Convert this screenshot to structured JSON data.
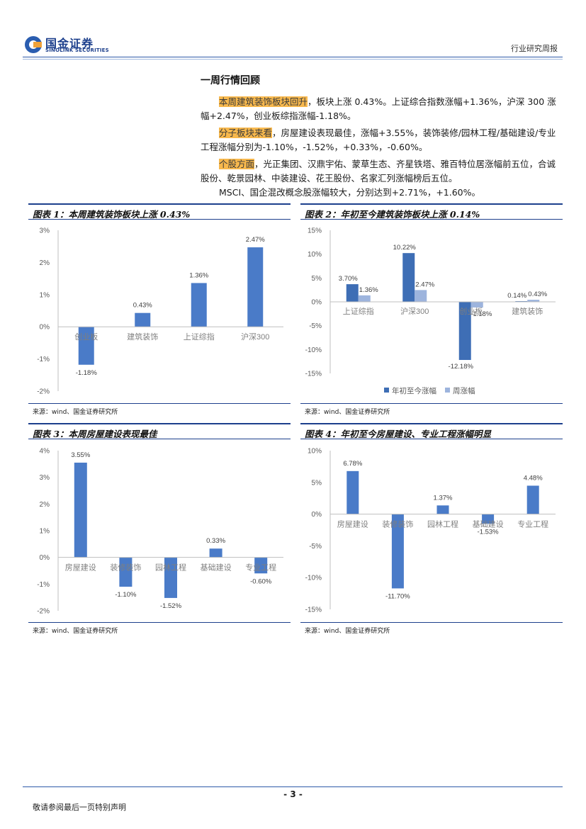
{
  "header": {
    "logo_cn": "国金证券",
    "logo_en": "SINOLINK SECURITIES",
    "report_type": "行业研究周报"
  },
  "section_title": "一周行情回顾",
  "paragraphs": [
    {
      "highlight": "本周建筑装饰板块回升",
      "text": "，板块上涨 0.43%。上证综合指数涨幅+1.36%，沪深 300 涨幅+2.47%，创业板综指涨幅-1.18%。"
    },
    {
      "highlight": "分子板块来看",
      "text": "，房屋建设表现最佳，涨幅+3.55%，装饰装修/园林工程/基础建设/专业工程涨幅分别为-1.10%，-1.52%，+0.33%，-0.60%。"
    },
    {
      "highlight": "个股方面",
      "text": "，光正集团、汉鼎宇佑、蒙草生态、齐星铁塔、雅百特位居涨幅前五位，合诚股份、乾景园林、中装建设、花王股份、名家汇列涨幅榜后五位。"
    },
    {
      "highlight": "",
      "text": "MSCI、国企混改概念股涨幅较大，分别达到+2.71%，+1.60%。"
    }
  ],
  "chart_data": [
    {
      "type": "bar",
      "title": "图表 1：本周建筑装饰板块上涨 0.43%",
      "categories": [
        "创业板",
        "建筑装饰",
        "上证综指",
        "沪深300"
      ],
      "values": [
        -1.18,
        0.43,
        1.36,
        2.47
      ],
      "data_labels": [
        "-1.18%",
        "0.43%",
        "1.36%",
        "2.47%"
      ],
      "ylim": [
        -2,
        3
      ],
      "yticks": [
        "3%",
        "2%",
        "1%",
        "0%",
        "-1%",
        "-2%"
      ],
      "grid": false,
      "color": "#4a7bc8",
      "source": "来源：wind、国金证券研究所"
    },
    {
      "type": "bar",
      "title": "图表 2：年初至今建筑装饰板块上涨 0.14%",
      "categories": [
        "上证综指",
        "沪深300",
        "创业板",
        "建筑装饰"
      ],
      "series": [
        {
          "name": "年初至今涨幅",
          "values": [
            3.7,
            10.22,
            -12.18,
            0.14
          ],
          "labels": [
            "3.70%",
            "10.22%",
            "-12.18%",
            "0.14%"
          ],
          "color": "#3e6eb5"
        },
        {
          "name": "周涨幅",
          "values": [
            1.36,
            2.47,
            -1.18,
            0.43
          ],
          "labels": [
            "1.36%",
            "2.47%",
            "-1.18%",
            "0.43%"
          ],
          "color": "#9db4dd"
        }
      ],
      "ylim": [
        -15,
        15
      ],
      "yticks": [
        "15%",
        "10%",
        "5%",
        "0%",
        "-5%",
        "-10%",
        "-15%"
      ],
      "legend": "bottom",
      "grid": false,
      "source": "来源：wind、国金证券研究所"
    },
    {
      "type": "bar",
      "title": "图表 3：本周房屋建设表现最佳",
      "categories": [
        "房屋建设",
        "装修装饰",
        "园林工程",
        "基础建设",
        "专业工程"
      ],
      "values": [
        3.55,
        -1.1,
        -1.52,
        0.33,
        -0.6
      ],
      "data_labels": [
        "3.55%",
        "-1.10%",
        "-1.52%",
        "0.33%",
        "-0.60%"
      ],
      "ylim": [
        -2,
        4
      ],
      "yticks": [
        "4%",
        "3%",
        "2%",
        "1%",
        "0%",
        "-1%",
        "-2%"
      ],
      "grid": false,
      "color": "#4a7bc8",
      "source": "来源：wind、国金证券研究所"
    },
    {
      "type": "bar",
      "title": "图表 4：年初至今房屋建设、专业工程涨幅明显",
      "categories": [
        "房屋建设",
        "装修装饰",
        "园林工程",
        "基础建设",
        "专业工程"
      ],
      "values": [
        6.78,
        -11.7,
        1.37,
        -1.53,
        4.48
      ],
      "data_labels": [
        "6.78%",
        "-11.70%",
        "1.37%",
        "-1.53%",
        "4.48%"
      ],
      "ylim": [
        -15,
        10
      ],
      "yticks": [
        "10%",
        "5%",
        "0%",
        "-5%",
        "-10%",
        "-15%"
      ],
      "grid": false,
      "color": "#4a7bc8",
      "source": "来源：wind、国金证券研究所"
    }
  ],
  "footer": {
    "page_number": "- 3 -",
    "disclaimer": "敬请参阅最后一页特别声明"
  }
}
